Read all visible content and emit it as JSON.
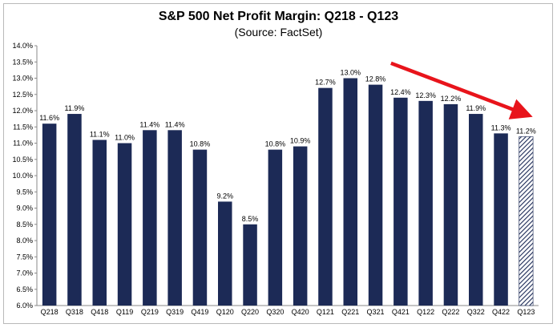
{
  "chart_data": {
    "type": "bar",
    "title": "S&P 500 Net Profit Margin: Q218 - Q123",
    "subtitle": "(Source: FactSet)",
    "xlabel": "",
    "ylabel": "",
    "categories": [
      "Q218",
      "Q318",
      "Q418",
      "Q119",
      "Q219",
      "Q319",
      "Q419",
      "Q120",
      "Q220",
      "Q320",
      "Q420",
      "Q121",
      "Q221",
      "Q321",
      "Q421",
      "Q122",
      "Q222",
      "Q322",
      "Q422",
      "Q123"
    ],
    "values": [
      11.6,
      11.9,
      11.1,
      11.0,
      11.4,
      11.4,
      10.8,
      9.2,
      8.5,
      10.8,
      10.9,
      12.7,
      13.0,
      12.8,
      12.4,
      12.3,
      12.2,
      11.9,
      11.3,
      11.2
    ],
    "data_labels": [
      "11.6%",
      "11.9%",
      "11.1%",
      "11.0%",
      "11.4%",
      "11.4%",
      "10.8%",
      "9.2%",
      "8.5%",
      "10.8%",
      "10.9%",
      "12.7%",
      "13.0%",
      "12.8%",
      "12.4%",
      "12.3%",
      "12.2%",
      "11.9%",
      "11.3%",
      "11.2%"
    ],
    "ylim": [
      6.0,
      14.0
    ],
    "yticks": [
      "6.0%",
      "6.5%",
      "7.0%",
      "7.5%",
      "8.0%",
      "8.5%",
      "9.0%",
      "9.5%",
      "10.0%",
      "10.5%",
      "11.0%",
      "11.5%",
      "12.0%",
      "12.5%",
      "13.0%",
      "13.5%",
      "14.0%"
    ],
    "grid": false,
    "legend": "none",
    "bar_color": "#1c2a56",
    "estimate_bar_style": "hatched",
    "arrow_color": "#e8141b",
    "trend_arrow": {
      "from_category": "Q421",
      "to_category": "Q123"
    }
  }
}
